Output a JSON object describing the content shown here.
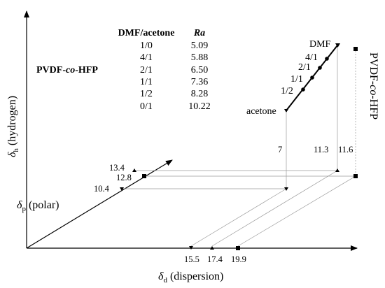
{
  "axes": {
    "hydrogen_symbol": "δ",
    "hydrogen_sub": "h",
    "hydrogen_word": "(hydrogen)",
    "polar_symbol": "δ",
    "polar_sub": "p",
    "polar_word": "(polar)",
    "dispersion_symbol": "δ",
    "dispersion_sub": "d",
    "dispersion_word": "(dispersion)"
  },
  "table": {
    "header_ratio": "DMF/acetone",
    "header_ra": "Ra",
    "polymer_label_1": "PVDF-",
    "polymer_label_2": "co",
    "polymer_label_3": "-HFP",
    "rows": [
      {
        "ratio": "1/0",
        "ra": "5.09"
      },
      {
        "ratio": "4/1",
        "ra": "5.88"
      },
      {
        "ratio": "2/1",
        "ra": "6.50"
      },
      {
        "ratio": "1/1",
        "ra": "7.36"
      },
      {
        "ratio": "1/2",
        "ra": "8.28"
      },
      {
        "ratio": "0/1",
        "ra": "10.22"
      }
    ]
  },
  "blend_line": {
    "top_label": "DMF",
    "bottom_label": "acetone",
    "point_labels": [
      "4/1",
      "2/1",
      "1/1",
      "1/2"
    ]
  },
  "polymer_vertical_label_1": "PVDF-",
  "polymer_vertical_label_2": "co",
  "polymer_vertical_label_3": "-HFP",
  "values": {
    "hydrogen": [
      "7",
      "11.3",
      "11.6"
    ],
    "polar": [
      "13.4",
      "12.8",
      "10.4"
    ],
    "dispersion": [
      "15.5",
      "17.4",
      "19.9"
    ]
  },
  "colors": {
    "ink": "#000000",
    "projection": "#9a9a9a"
  }
}
